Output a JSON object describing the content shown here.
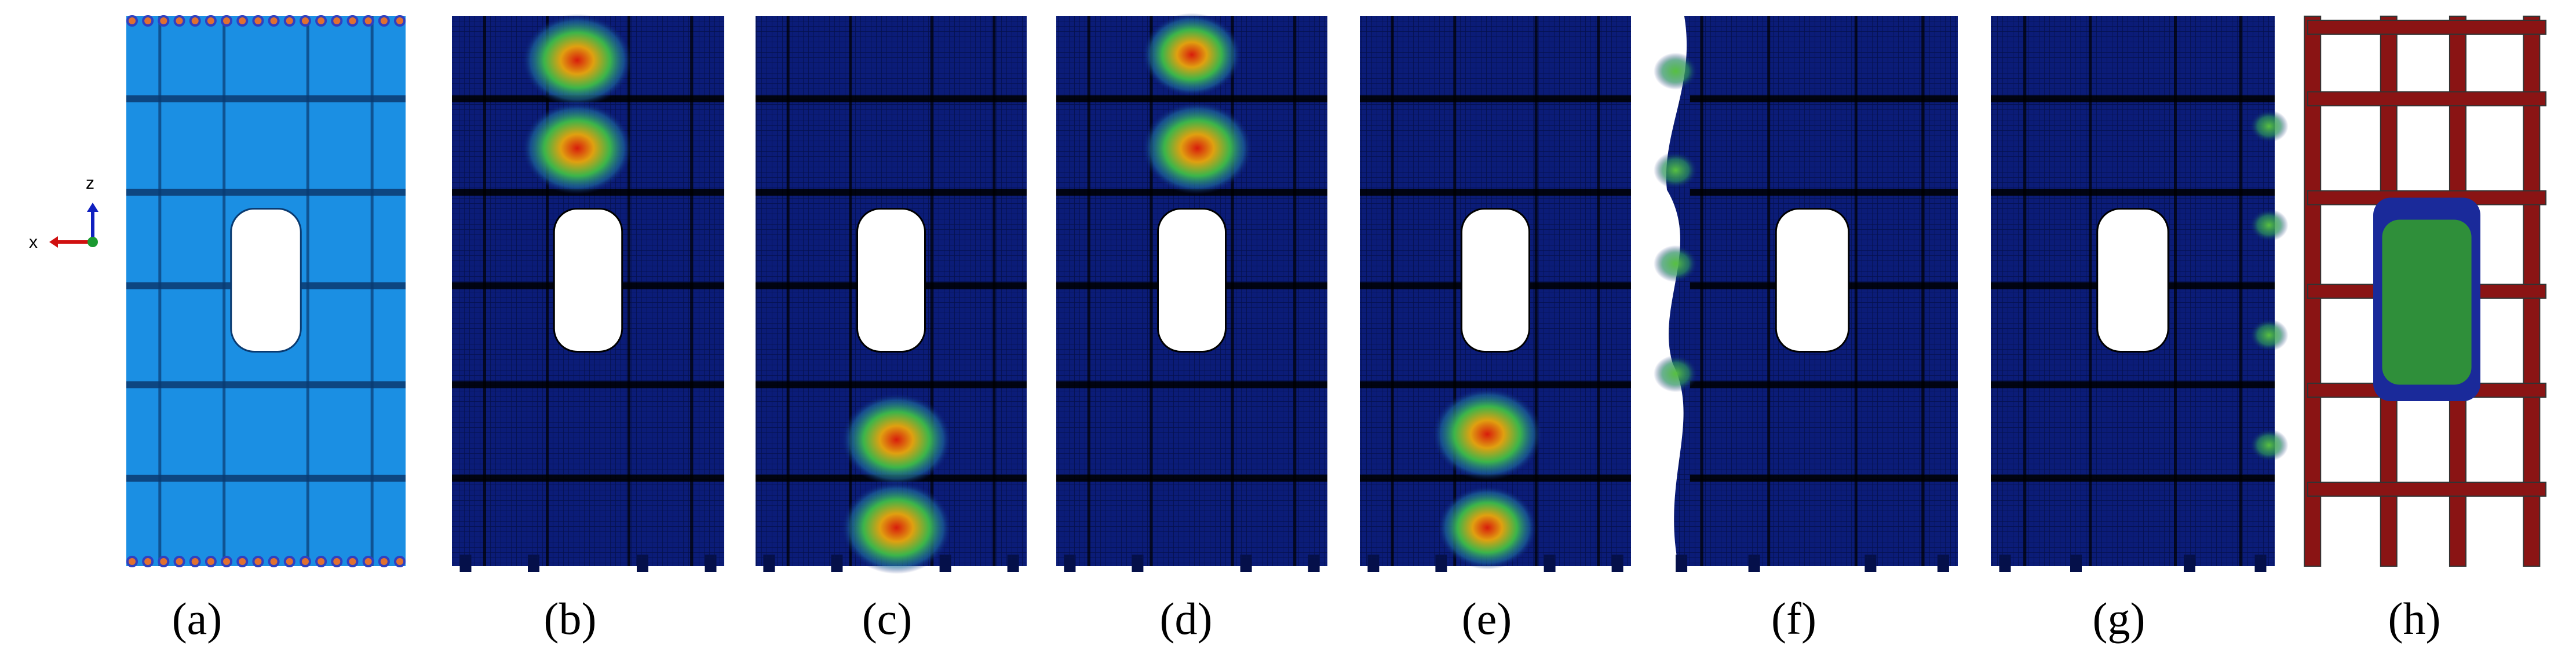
{
  "panels": [
    {
      "label": "(a)"
    },
    {
      "label": "(b)"
    },
    {
      "label": "(c)"
    },
    {
      "label": "(d)"
    },
    {
      "label": "(e)"
    },
    {
      "label": "(f)"
    },
    {
      "label": "(g)"
    },
    {
      "label": "(h)"
    }
  ],
  "axes": {
    "x": "x",
    "z": "z"
  }
}
